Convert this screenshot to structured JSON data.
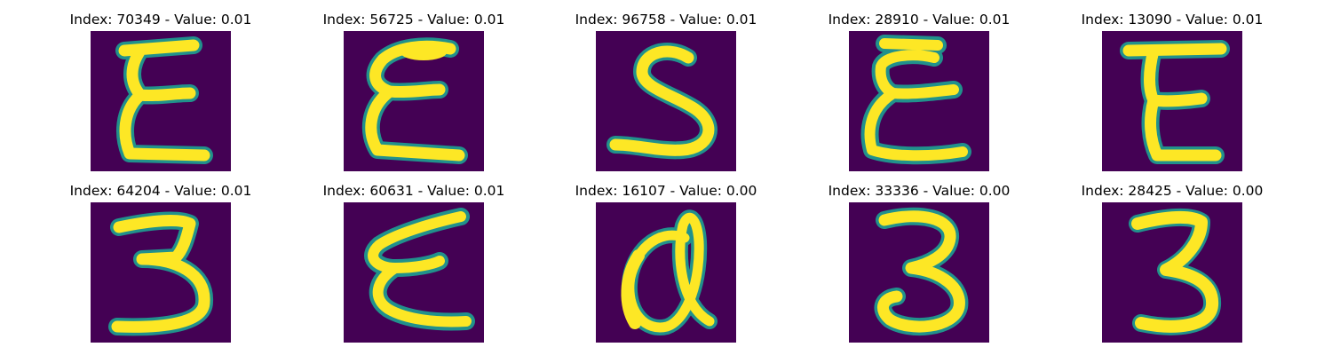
{
  "palette": {
    "background": "#440154",
    "edge_dark": "#31688e",
    "edge_mid": "#21918c",
    "edge_light": "#5ec962",
    "stroke": "#fde725"
  },
  "panels": [
    {
      "title": "Index: 70349 - Value: 0.01",
      "glyph": "E"
    },
    {
      "title": "Index: 56725 - Value: 0.01",
      "glyph": "E"
    },
    {
      "title": "Index: 96758 - Value: 0.01",
      "glyph": "S"
    },
    {
      "title": "Index: 28910 - Value: 0.01",
      "glyph": "E"
    },
    {
      "title": "Index: 13090 - Value: 0.01",
      "glyph": "E"
    },
    {
      "title": "Index: 64204 - Value: 0.01",
      "glyph": "3"
    },
    {
      "title": "Index: 60631 - Value: 0.01",
      "glyph": "E"
    },
    {
      "title": "Index: 16107 - Value: 0.00",
      "glyph": "a"
    },
    {
      "title": "Index: 33336 - Value: 0.00",
      "glyph": "3"
    },
    {
      "title": "Index: 28425 - Value: 0.00",
      "glyph": "3"
    }
  ]
}
